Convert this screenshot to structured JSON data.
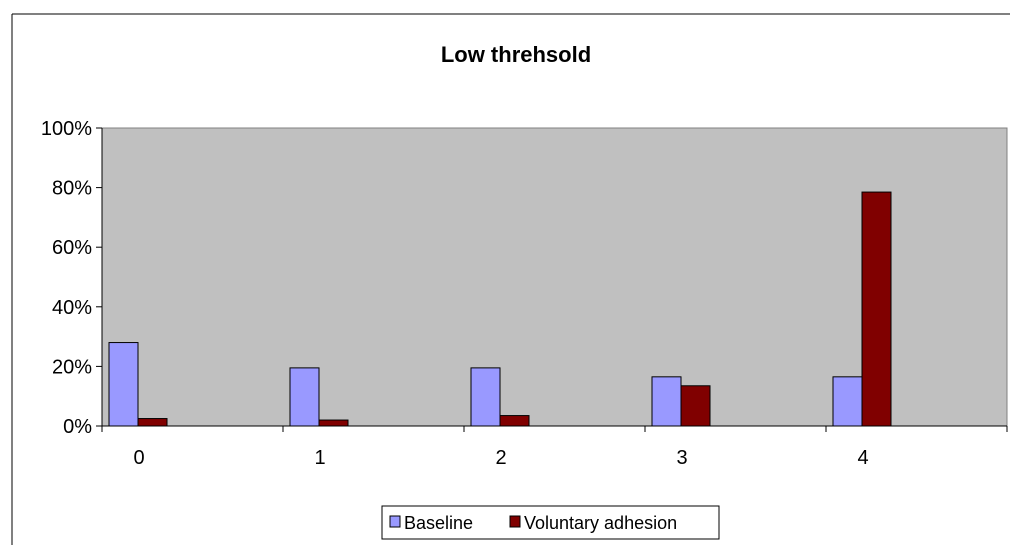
{
  "chart_data": {
    "type": "bar",
    "title": "Low threhsold",
    "xlabel": "",
    "ylabel": "",
    "categories": [
      "0",
      "1",
      "2",
      "3",
      "4"
    ],
    "series": [
      {
        "name": "Baseline",
        "values": [
          28,
          19.5,
          19.5,
          16.5,
          16.5
        ],
        "color": "#9999ff"
      },
      {
        "name": "Voluntary adhesion",
        "values": [
          2.5,
          2,
          3.5,
          13.5,
          78.5
        ],
        "color": "#800000"
      }
    ],
    "ylim": [
      0,
      100
    ],
    "yticks": [
      "0%",
      "20%",
      "40%",
      "60%",
      "80%",
      "100%"
    ],
    "plot_background": "#c0c0c0",
    "grid": false,
    "legend": "bottom"
  }
}
